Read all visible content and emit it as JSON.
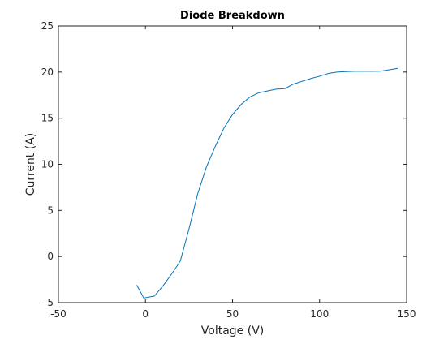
{
  "chart_data": {
    "type": "line",
    "title": "Diode Breakdown",
    "xlabel": "Voltage (V)",
    "ylabel": "Current (A)",
    "xlim": [
      -50,
      150
    ],
    "ylim": [
      -5,
      25
    ],
    "xticks": [
      -50,
      0,
      50,
      100,
      150
    ],
    "yticks": [
      -5,
      0,
      5,
      10,
      15,
      20,
      25
    ],
    "grid": false,
    "legend": "none",
    "line_color": "#0072BD",
    "series": [
      {
        "x": [
          -5,
          -1,
          5,
          10,
          15,
          20,
          25,
          30,
          35,
          40,
          45,
          50,
          55,
          60,
          65,
          70,
          75,
          80,
          85,
          90,
          95,
          100,
          105,
          110,
          115,
          120,
          125,
          130,
          135,
          140,
          145
        ],
        "y": [
          -3.1,
          -4.5,
          -4.3,
          -3.2,
          -1.9,
          -0.5,
          3.0,
          6.8,
          9.7,
          11.9,
          13.9,
          15.4,
          16.5,
          17.3,
          17.75,
          17.95,
          18.15,
          18.2,
          18.7,
          19.0,
          19.3,
          19.55,
          19.85,
          20.0,
          20.05,
          20.08,
          20.08,
          20.08,
          20.1,
          20.25,
          20.4
        ]
      }
    ]
  }
}
